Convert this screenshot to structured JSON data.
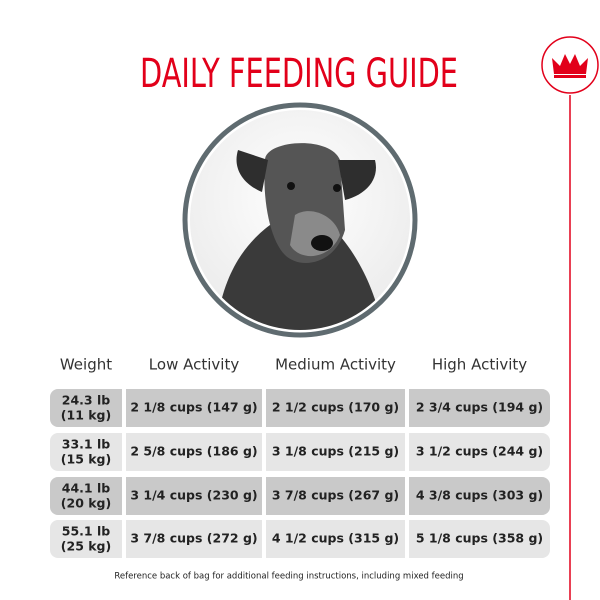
{
  "header": {
    "title": "DAILY FEEDING GUIDE"
  },
  "table": {
    "columns": [
      "Weight",
      "Low Activity",
      "Medium Activity",
      "High Activity"
    ],
    "rows": [
      [
        [
          "24.3 lb",
          "(11 kg)"
        ],
        "2 1/8 cups (147 g)",
        "2 1/2 cups (170 g)",
        "2 3/4 cups (194 g)"
      ],
      [
        [
          "33.1 lb",
          "(15 kg)"
        ],
        "2 5/8 cups (186 g)",
        "3 1/8 cups (215 g)",
        "3 1/2 cups (244 g)"
      ],
      [
        [
          "44.1 lb",
          "(20 kg)"
        ],
        "3 1/4 cups (230 g)",
        "3 7/8 cups (267 g)",
        "4 3/8 cups (303 g)"
      ],
      [
        [
          "55.1 lb",
          "(25 kg)"
        ],
        "3 7/8 cups (272 g)",
        "4 1/2 cups (315 g)",
        "5 1/8 cups (358 g)"
      ]
    ]
  },
  "footnote": "Reference back of bag for additional feeding instructions, including mixed feeding"
}
